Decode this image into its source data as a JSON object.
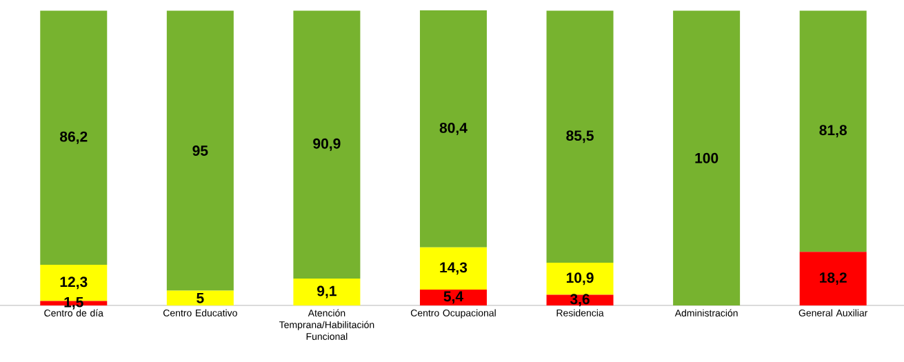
{
  "chart_data": {
    "type": "bar",
    "stacked": true,
    "categories": [
      "Centro de día",
      "Centro Educativo",
      "Atención Temprana/Habilitación Funcional",
      "Centro Ocupacional",
      "Residencia",
      "Administración",
      "General Auxiliar"
    ],
    "series": [
      {
        "color": "#ff0000",
        "values": [
          1.5,
          null,
          null,
          5.4,
          3.6,
          null,
          18.2
        ],
        "value_labels": [
          "1,5",
          null,
          null,
          "5,4",
          "3,6",
          null,
          "18,2"
        ]
      },
      {
        "color": "#ffff00",
        "values": [
          12.3,
          5,
          9.1,
          14.3,
          10.9,
          null,
          null
        ],
        "value_labels": [
          "12,3",
          "5",
          "9,1",
          "14,3",
          "10,9",
          null,
          null
        ]
      },
      {
        "color": "#77b32f",
        "values": [
          86.2,
          95,
          90.9,
          80.4,
          85.5,
          100,
          81.8
        ],
        "value_labels": [
          "86,2",
          "95",
          "90,9",
          "80,4",
          "85,5",
          "100",
          "81,8"
        ]
      }
    ]
  }
}
